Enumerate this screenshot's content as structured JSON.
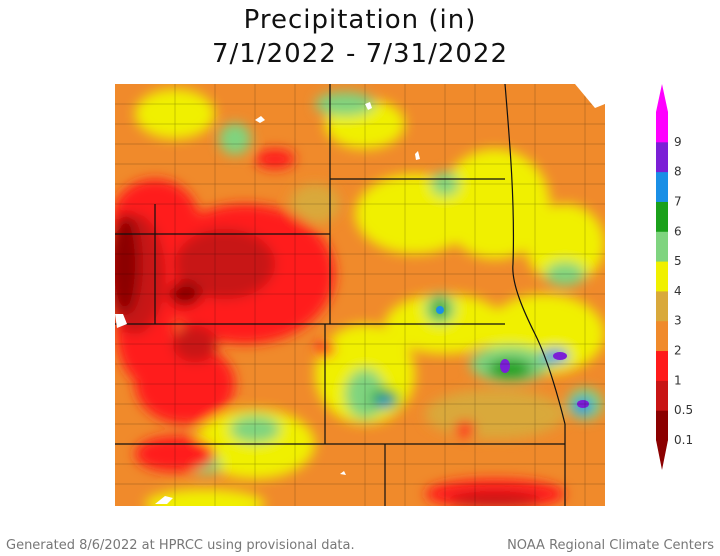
{
  "title": {
    "line1": "Precipitation (in)",
    "line2": "7/1/2022 - 7/31/2022"
  },
  "legend": {
    "labels": [
      "0.1",
      "0.5",
      "1",
      "2",
      "3",
      "4",
      "5",
      "6",
      "7",
      "8",
      "9"
    ],
    "colors": [
      "#8b0000",
      "#c81414",
      "#ff1a1a",
      "#f08a2b",
      "#d9a93b",
      "#f0f000",
      "#7fd47f",
      "#1aa01a",
      "#1a8fe6",
      "#7b1fd6",
      "#ff00ff"
    ]
  },
  "footer": {
    "left": "Generated 8/6/2022 at HPRCC using provisional data.",
    "right": "NOAA Regional Climate Centers"
  }
}
